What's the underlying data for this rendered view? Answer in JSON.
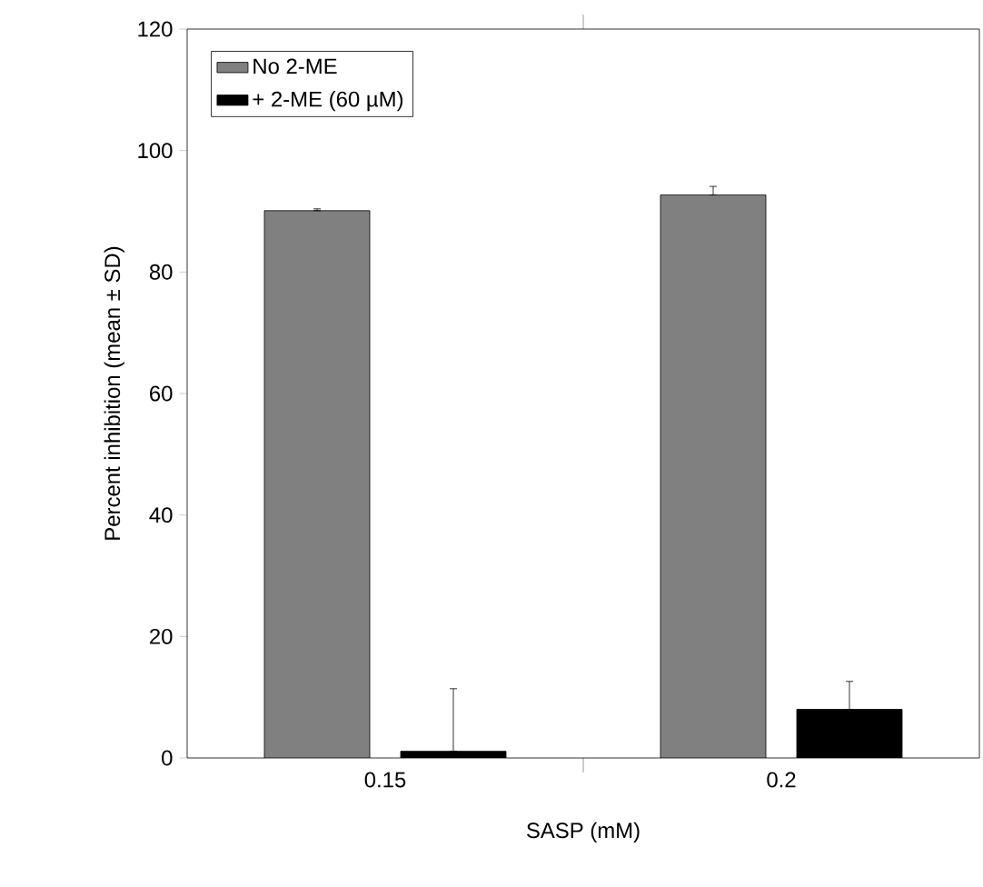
{
  "chart_data": {
    "type": "bar",
    "xlabel": "SASP (mM)",
    "ylabel": "Percent inhibition  (mean ± SD)",
    "categories": [
      "0.15",
      "0.2"
    ],
    "series": [
      {
        "name": "No 2-ME",
        "color": "#808080",
        "values": [
          90.1,
          92.7
        ],
        "errors": [
          [
            90.1,
            90.4
          ],
          [
            92.7,
            94.1
          ]
        ]
      },
      {
        "name": "+ 2-ME (60 µM)",
        "color": "#000000",
        "values": [
          1.1,
          8.0
        ],
        "errors": [
          [
            1.1,
            11.4
          ],
          [
            8.0,
            12.6
          ]
        ]
      }
    ],
    "ylim": [
      0,
      120
    ],
    "yticks": [
      0,
      20,
      40,
      60,
      80,
      100,
      120
    ],
    "legend": "top left"
  }
}
